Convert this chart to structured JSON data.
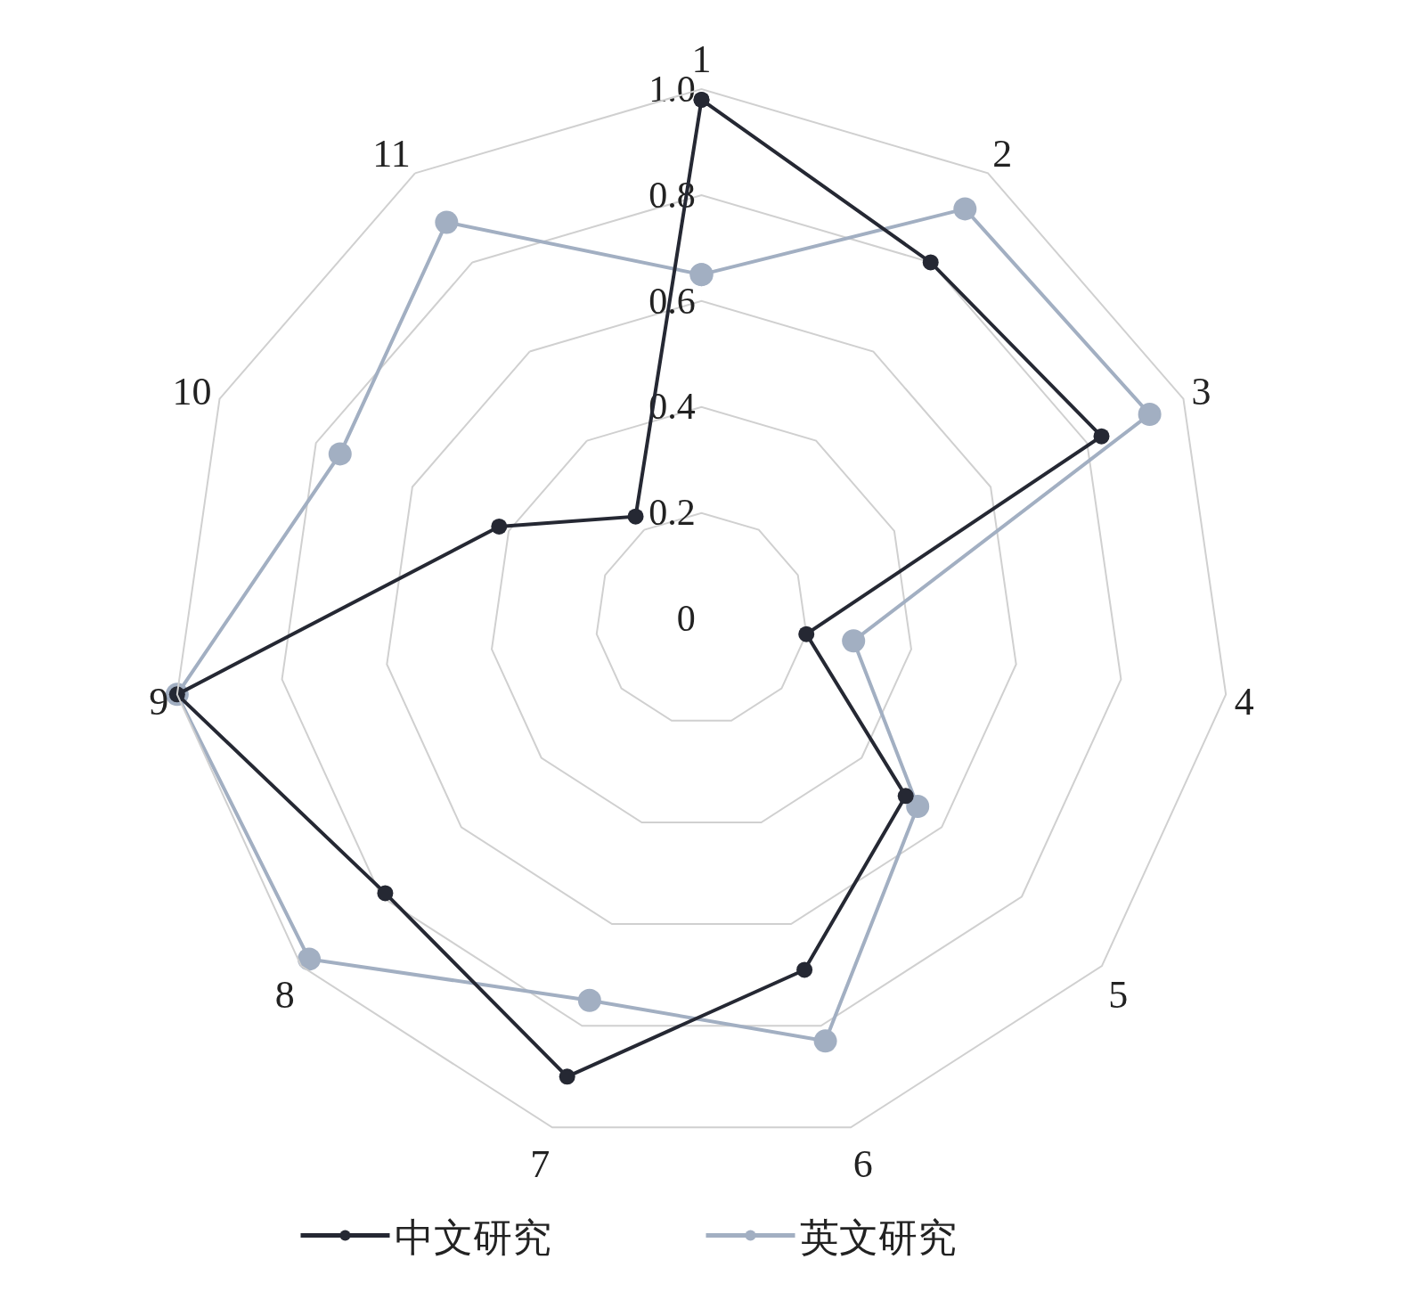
{
  "chart_data": {
    "type": "radar",
    "categories": [
      "1",
      "2",
      "3",
      "4",
      "5",
      "6",
      "7",
      "8",
      "9",
      "10",
      "11"
    ],
    "series": [
      {
        "name": "中文研究",
        "color": "#252833",
        "values": [
          0.98,
          0.8,
          0.83,
          0.2,
          0.51,
          0.69,
          0.9,
          0.79,
          1.0,
          0.42,
          0.23
        ]
      },
      {
        "name": "英文研究",
        "color": "#a2afc2",
        "values": [
          0.65,
          0.92,
          0.93,
          0.29,
          0.54,
          0.83,
          0.75,
          0.98,
          1.0,
          0.75,
          0.89
        ]
      }
    ],
    "ylim": [
      0,
      1
    ],
    "yticks": [
      0,
      {
        "value": 0.2,
        "label": "0.2"
      },
      {
        "value": 0.4,
        "label": "0.4"
      },
      {
        "value": 0.6,
        "label": "0.6"
      },
      {
        "value": 0.8,
        "label": "0.8"
      },
      {
        "value": 1,
        "label": "1.0"
      }
    ],
    "grid": true,
    "legend": "bottom",
    "marker": "circle",
    "line_style": "solid"
  }
}
